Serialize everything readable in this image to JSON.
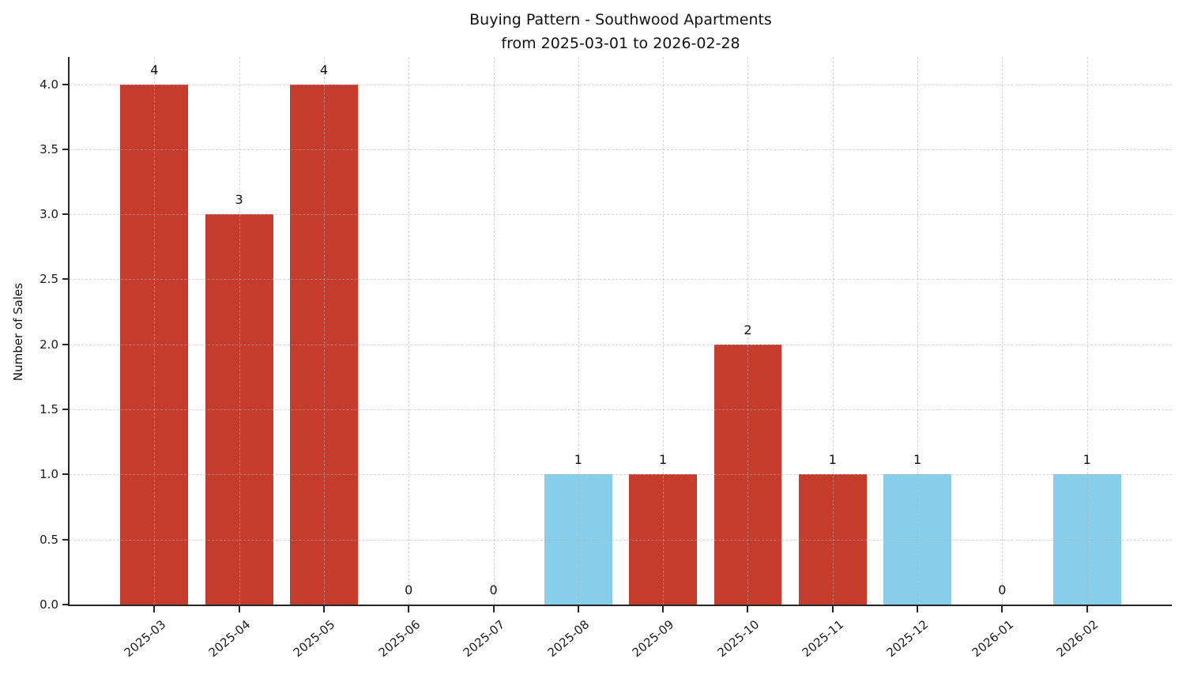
{
  "chart_data": {
    "type": "bar",
    "title": "Buying Pattern - Southwood Apartments\nfrom 2025-03-01 to 2026-02-28",
    "title_line1": "Buying Pattern - Southwood Apartments",
    "title_line2": "from 2025-03-01 to 2026-02-28",
    "xlabel": "",
    "ylabel": "Number of Sales",
    "categories": [
      "2025-03",
      "2025-04",
      "2025-05",
      "2025-06",
      "2025-07",
      "2025-08",
      "2025-09",
      "2025-10",
      "2025-11",
      "2025-12",
      "2026-01",
      "2026-02"
    ],
    "values": [
      4,
      3,
      4,
      0,
      0,
      1,
      1,
      2,
      1,
      1,
      0,
      1
    ],
    "value_labels": [
      "4",
      "3",
      "4",
      "0",
      "0",
      "1",
      "1",
      "2",
      "1",
      "1",
      "0",
      "1"
    ],
    "bar_colors": [
      "#c53b2c",
      "#c53b2c",
      "#c53b2c",
      "#c53b2c",
      "#c53b2c",
      "#87ceeb",
      "#c53b2c",
      "#c53b2c",
      "#c53b2c",
      "#87ceeb",
      "#c53b2c",
      "#87ceeb"
    ],
    "yticks": [
      "0.0",
      "0.5",
      "1.0",
      "1.5",
      "2.0",
      "2.5",
      "3.0",
      "3.5",
      "4.0"
    ],
    "ylim": [
      0,
      4.21
    ],
    "grid": "dashed",
    "grid_on": true,
    "legend": "none",
    "colors": {
      "bar_red": "#c53b2c",
      "bar_blue": "#87ceeb",
      "axis": "#262626",
      "grid": "#b0b0b0",
      "text": "#1a1a1a",
      "background": "#ffffff"
    }
  }
}
